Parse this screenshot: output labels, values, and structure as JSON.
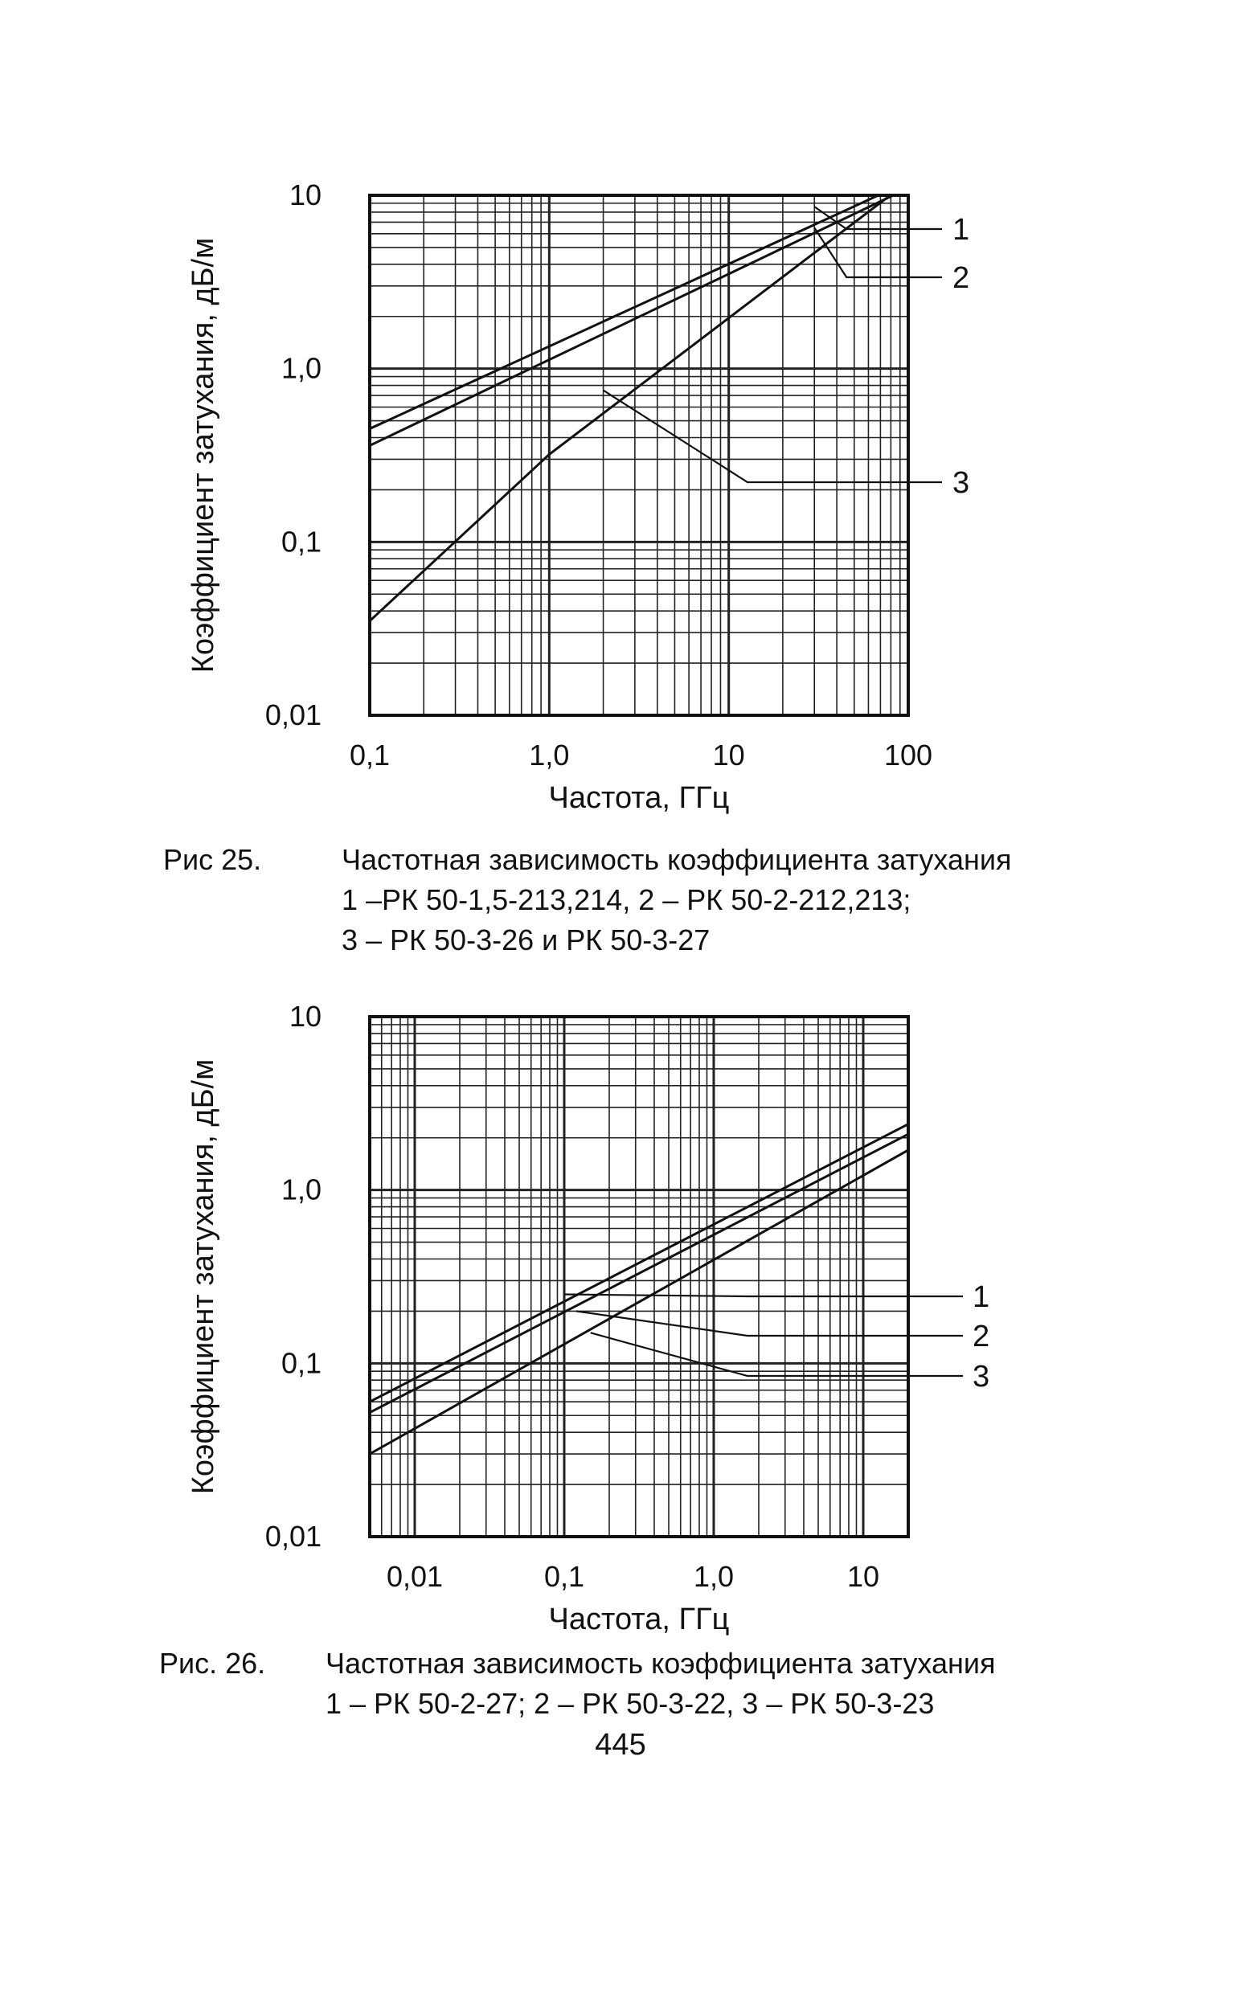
{
  "chart_data": [
    {
      "type": "line",
      "x_scale": "log",
      "y_scale": "log",
      "xlim": [
        0.1,
        100
      ],
      "ylim": [
        0.01,
        10
      ],
      "xticks": [
        "0,1",
        "1,0",
        "10",
        "100"
      ],
      "yticks": [
        "0,01",
        "0,1",
        "1,0",
        "10"
      ],
      "xlabel": "Частота, ГГц",
      "ylabel": "Коэффициент затухания, дБ/м",
      "grid": true,
      "series": [
        {
          "name": "1",
          "x": [
            0.1,
            100
          ],
          "y": [
            0.45,
            12
          ]
        },
        {
          "name": "2",
          "x": [
            0.1,
            100
          ],
          "y": [
            0.36,
            11
          ]
        },
        {
          "name": "3",
          "x": [
            0.1,
            1.0,
            100
          ],
          "y": [
            0.035,
            0.32,
            12
          ]
        }
      ],
      "callouts": [
        {
          "label": "1",
          "x": 30,
          "y": 8.6
        },
        {
          "label": "2",
          "x": 30,
          "y": 6.5
        },
        {
          "label": "3",
          "x": 2.0,
          "y": 0.75
        }
      ],
      "caption_label": "Рис 25.",
      "caption_lines": [
        "Частотная зависимость коэффициента затухания",
        "1 –РК 50-1,5-213,214, 2 – РК 50-2-212,213;",
        "3 – РК 50-3-26 и РК 50-3-27"
      ]
    },
    {
      "type": "line",
      "x_scale": "log",
      "y_scale": "log",
      "xlim": [
        0.005,
        20
      ],
      "ylim": [
        0.01,
        10
      ],
      "xticks": [
        "0,01",
        "0,1",
        "1,0",
        "10"
      ],
      "yticks": [
        "0,01",
        "0,1",
        "1,0",
        "10"
      ],
      "xlabel": "Частота, ГГц",
      "ylabel": "Коэффициент затухания, дБ/м",
      "grid": true,
      "series": [
        {
          "name": "1",
          "x": [
            0.005,
            20
          ],
          "y": [
            0.06,
            2.4
          ]
        },
        {
          "name": "2",
          "x": [
            0.005,
            20
          ],
          "y": [
            0.052,
            2.1
          ]
        },
        {
          "name": "3",
          "x": [
            0.005,
            20
          ],
          "y": [
            0.03,
            1.7
          ]
        }
      ],
      "callouts": [
        {
          "label": "1",
          "x": 0.1,
          "y": 0.25
        },
        {
          "label": "2",
          "x": 0.12,
          "y": 0.2
        },
        {
          "label": "3",
          "x": 0.15,
          "y": 0.15
        }
      ],
      "caption_label": "Рис. 26.",
      "caption_lines": [
        "Частотная зависимость коэффициента затухания",
        "1 – РК 50-2-27;   2 – РК 50-3-22,   3 – РК 50-3-23"
      ]
    }
  ],
  "page_number": "445"
}
